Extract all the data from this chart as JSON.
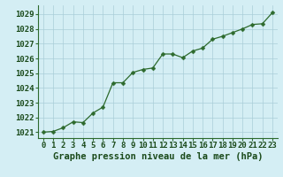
{
  "x": [
    0,
    1,
    2,
    3,
    4,
    5,
    6,
    7,
    8,
    9,
    10,
    11,
    12,
    13,
    14,
    15,
    16,
    17,
    18,
    19,
    20,
    21,
    22,
    23
  ],
  "y": [
    1021.0,
    1021.05,
    1021.3,
    1021.7,
    1021.65,
    1022.3,
    1022.7,
    1024.35,
    1024.35,
    1025.05,
    1025.25,
    1025.35,
    1026.3,
    1026.3,
    1026.05,
    1026.5,
    1026.7,
    1027.3,
    1027.5,
    1027.75,
    1028.0,
    1028.3,
    1028.35,
    1029.1
  ],
  "line_color": "#2d6a2d",
  "marker": "D",
  "marker_size": 2.5,
  "bg_color": "#d4eef4",
  "grid_color": "#aacdd8",
  "xlabel": "Graphe pression niveau de la mer (hPa)",
  "xlabel_color": "#1a4a1a",
  "xlabel_fontsize": 7.5,
  "tick_color": "#1a4a1a",
  "tick_fontsize": 6.5,
  "ylim": [
    1020.6,
    1029.6
  ],
  "yticks": [
    1021,
    1022,
    1023,
    1024,
    1025,
    1026,
    1027,
    1028,
    1029
  ],
  "xticks": [
    0,
    1,
    2,
    3,
    4,
    5,
    6,
    7,
    8,
    9,
    10,
    11,
    12,
    13,
    14,
    15,
    16,
    17,
    18,
    19,
    20,
    21,
    22,
    23
  ]
}
